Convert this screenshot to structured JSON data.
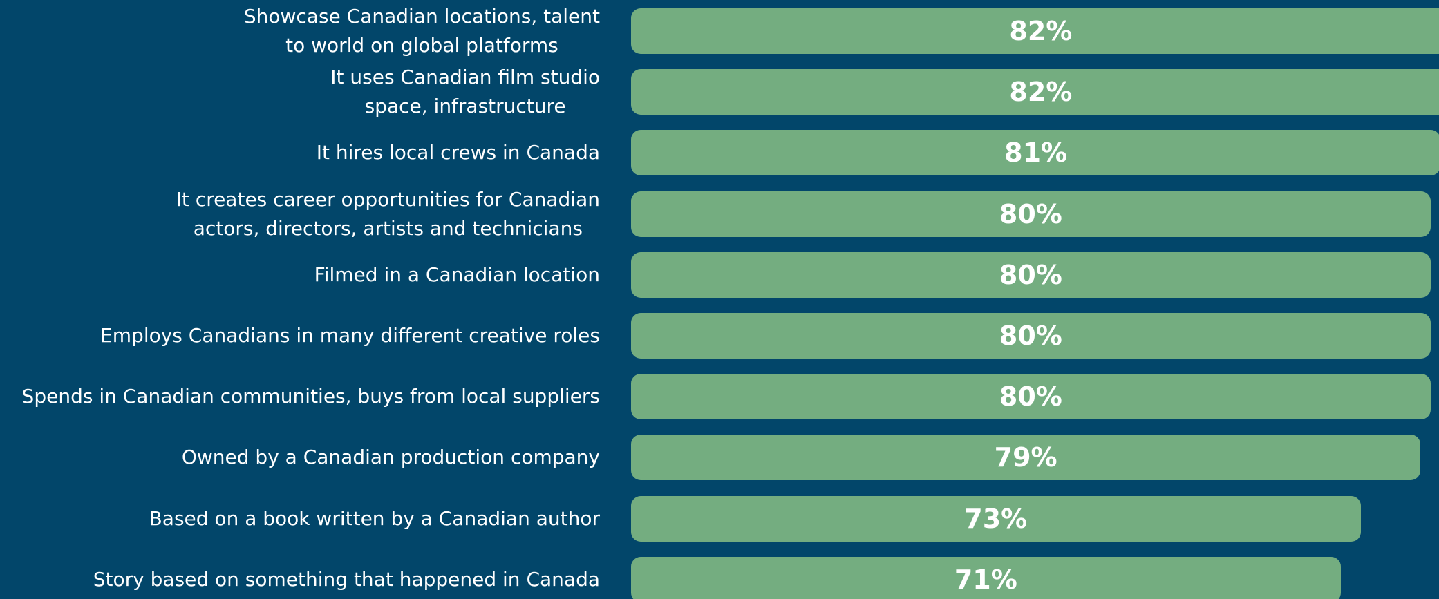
{
  "chart_data": {
    "type": "bar",
    "orientation": "horizontal",
    "color": "#74ad80",
    "background": "#02466a",
    "categories": [
      "Showcase Canadian locations, talent\nto world on global platforms",
      "It uses Canadian film studio\nspace, infrastructure",
      "It hires local crews in Canada",
      "It creates career opportunities for Canadian\nactors, directors, artists and technicians",
      "Filmed in a Canadian location",
      "Employs Canadians in many different creative roles",
      "Spends in Canadian communities, buys from local suppliers",
      "Owned by a Canadian production company",
      "Based on a book written by a Canadian author",
      "Story based on something that happened in Canada"
    ],
    "values": [
      82,
      82,
      81,
      80,
      80,
      80,
      80,
      79,
      73,
      71
    ],
    "value_labels": [
      "82%",
      "82%",
      "81%",
      "80%",
      "80%",
      "80%",
      "80%",
      "79%",
      "73%",
      "71%"
    ]
  }
}
